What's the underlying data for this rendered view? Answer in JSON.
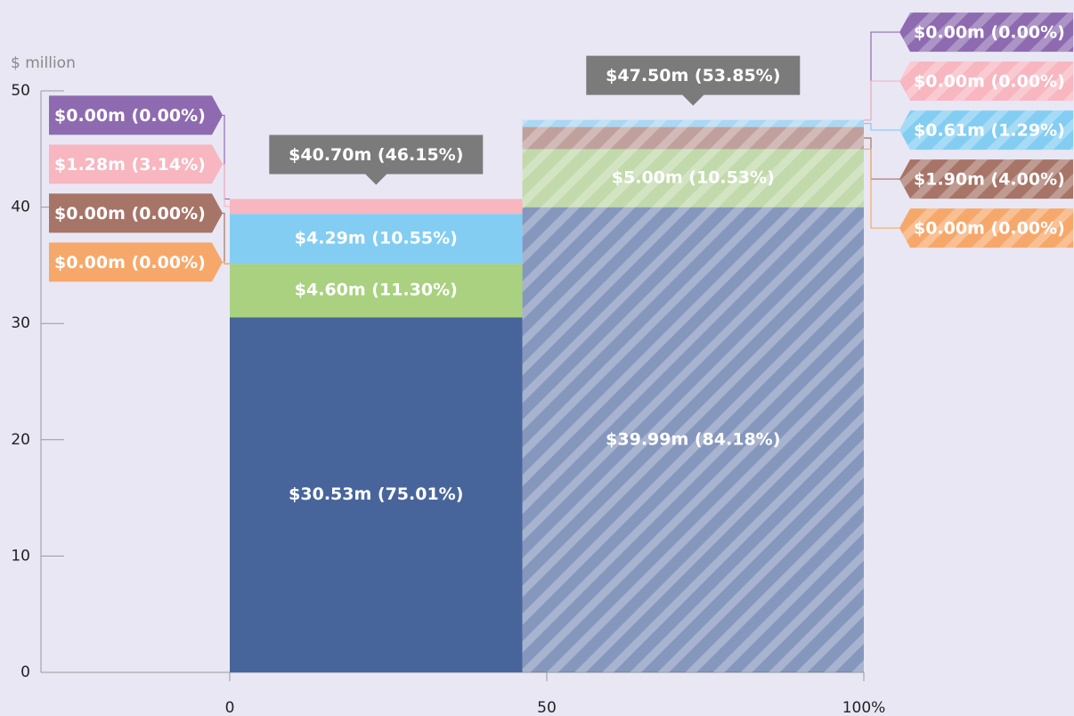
{
  "chart_data": {
    "type": "mekko",
    "y_axis_label": "$ million",
    "xlim": [
      0,
      100
    ],
    "xticks": [
      0,
      50,
      {
        "value": 100,
        "label": "100%"
      }
    ],
    "ylim": [
      0,
      50
    ],
    "yticks": [
      0,
      10,
      20,
      30,
      40,
      50
    ],
    "widths": [
      46.15,
      53.85
    ],
    "hatched": [
      false,
      true
    ],
    "totals": [
      40.7,
      47.5
    ],
    "total_labels": [
      "$40.70m (46.15%)",
      "$47.50m  (53.85%)"
    ],
    "series": [
      {
        "color": "#48659b",
        "values": [
          30.53,
          39.99
        ],
        "value_labels": [
          "$30.53m (75.01%)",
          "$39.99m (84.18%)"
        ]
      },
      {
        "color": "#a9d17f",
        "values": [
          4.6,
          5.0
        ],
        "value_labels": [
          "$4.60m (11.30%)",
          "$5.00m (10.53%)"
        ]
      },
      {
        "color": "#f6a86b",
        "values": [
          0.0,
          0.0
        ],
        "value_labels": [
          "$0.00m (0.00%)",
          "$0.00m (0.00%)"
        ]
      },
      {
        "color": "#a77468",
        "values": [
          0.0,
          1.9
        ],
        "value_labels": [
          "$0.00m (0.00%)",
          "$1.90m (4.00%)"
        ]
      },
      {
        "color": "#83cdf2",
        "values": [
          4.29,
          0.61
        ],
        "value_labels": [
          "$4.29m (10.55%)",
          "$0.61m (1.29%)"
        ]
      },
      {
        "color": "#f7b6c0",
        "values": [
          1.28,
          0.0
        ],
        "value_labels": [
          "$1.28m (3.14%)",
          "$0.00m (0.00%)"
        ]
      },
      {
        "color": "#8e6bb0",
        "values": [
          0.0,
          0.0
        ],
        "value_labels": [
          "$0.00m (0.00%)",
          "$0.00m (0.00%)"
        ]
      }
    ]
  }
}
